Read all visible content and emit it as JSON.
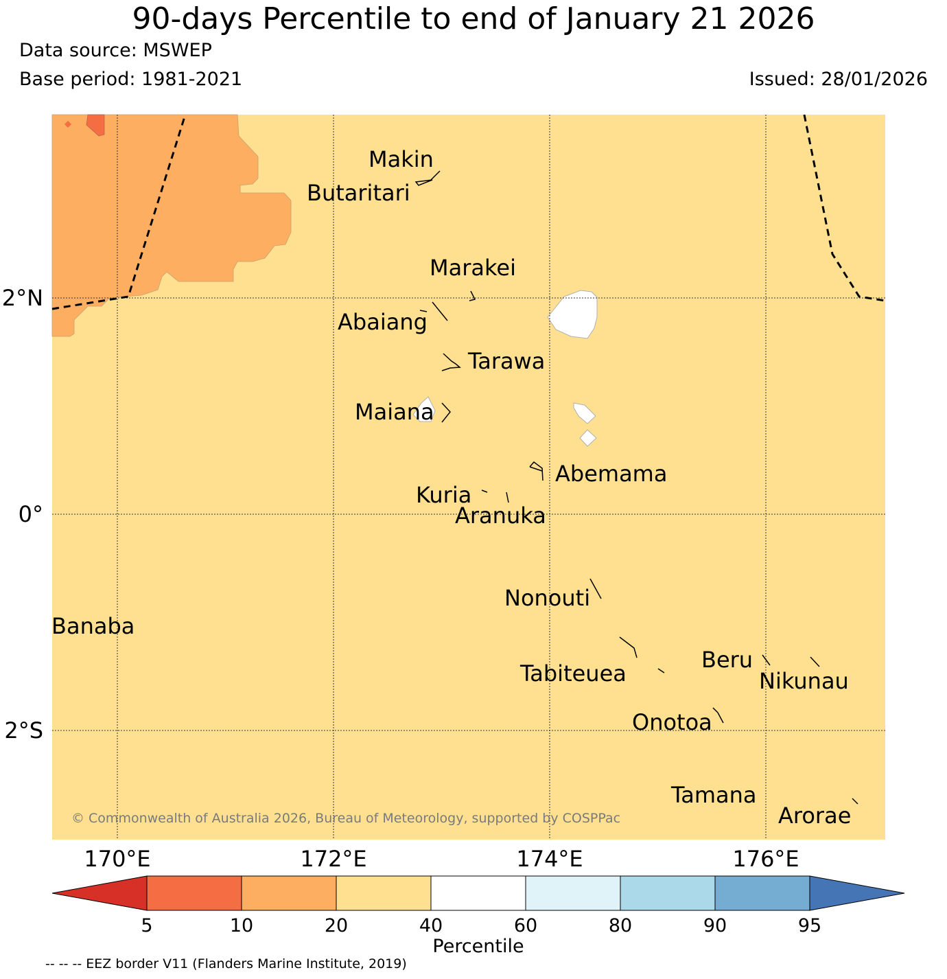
{
  "title": "90-days Percentile to end of January 21 2026",
  "data_source": "Data source: MSWEP",
  "base_period": "Base period: 1981-2021",
  "issued": "Issued: 28/01/2026",
  "copyright": "© Commonwealth of Australia 2026, Bureau of Meteorology, supported by COSPPac",
  "eez_note": "-- -- -- EEZ border V11 (Flanders Marine Institute, 2019)",
  "axes": {
    "lat_labels": [
      "2°N",
      "0°",
      "2°S"
    ],
    "lon_labels": [
      "170°E",
      "172°E",
      "174°E",
      "176°E"
    ]
  },
  "islands": {
    "makin": "Makin",
    "butaritari": "Butaritari",
    "marakei": "Marakei",
    "abaiang": "Abaiang",
    "tarawa": "Tarawa",
    "maiana": "Maiana",
    "abemama": "Abemama",
    "kuria": "Kuria",
    "aranuka": "Aranuka",
    "nonouti": "Nonouti",
    "banaba": "Banaba",
    "beru": "Beru",
    "tabiteuea": "Tabiteuea",
    "nikunau": "Nikunau",
    "onotoa": "Onotoa",
    "tamana": "Tamana",
    "arorae": "Arorae"
  },
  "colorbar": {
    "label": "Percentile",
    "ticks": [
      "5",
      "10",
      "20",
      "40",
      "60",
      "80",
      "90",
      "95"
    ],
    "colors": {
      "lt5": "#d73027",
      "p5_10": "#f46d43",
      "p10_20": "#fdae61",
      "p20_40": "#fee090",
      "p40_60": "#ffffff",
      "p60_80": "#e0f3f8",
      "p80_90": "#abd9e9",
      "p90_95": "#74add1",
      "gt95": "#4575b4"
    }
  }
}
